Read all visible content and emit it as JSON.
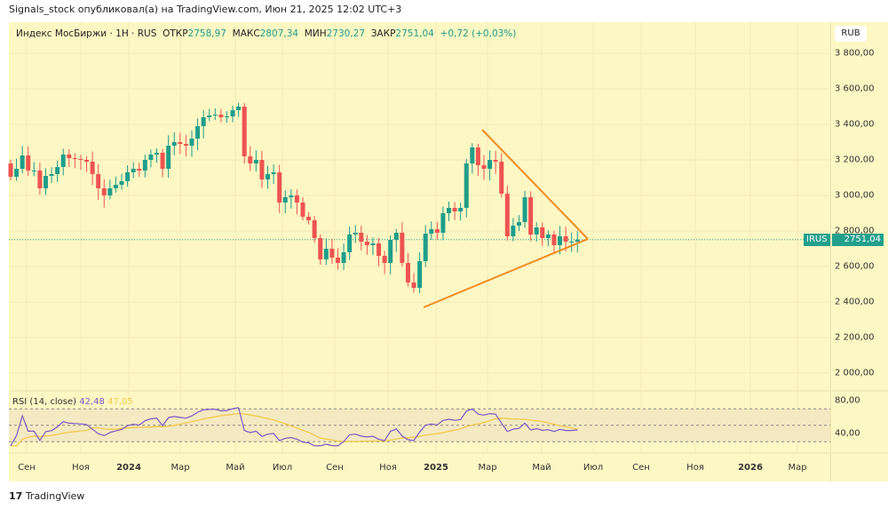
{
  "header": {
    "published": "Signals_stock опубликовал(а) на TradingView.com, Июн 21, 2025 12:02 UTC+3"
  },
  "legend": {
    "symbol": "Индекс МосБиржи · 1H · RUS",
    "open_label": "ОТКР",
    "open": "2758,97",
    "high_label": "МАКС",
    "high": "2807,34",
    "low_label": "МИН",
    "low": "2730,27",
    "close_label": "ЗАКР",
    "close": "2751,04",
    "change": "+0,72 (+0,03%)"
  },
  "currency": "RUB",
  "last_price_tag": {
    "ticker": "IRUS",
    "price": "2751,04"
  },
  "rsi": {
    "label": "RSI (14, close)",
    "value": "42,48",
    "ma_value": "47,05",
    "ticks": [
      "80,00",
      "40,00"
    ],
    "levels": [
      70,
      50,
      30
    ]
  },
  "footer": {
    "brand": "TradingView"
  },
  "colors": {
    "up": "#1e9e8a",
    "down": "#ef5350",
    "trend": "#f08a24",
    "rsi": "#7e57c2",
    "rsi_ma": "#f2c94c"
  },
  "chart_data": {
    "type": "candlestick",
    "title": "Индекс МосБиржи",
    "ylim": [
      1900,
      3900
    ],
    "yticks": [
      3800,
      3600,
      3400,
      3200,
      3000,
      2800,
      2600,
      2400,
      2200,
      2000
    ],
    "ytick_labels": [
      "3 800,00",
      "3 600,00",
      "3 400,00",
      "3 200,00",
      "3 000,00",
      "2 800,00",
      "2 600,00",
      "2 400,00",
      "2 200,00",
      "2 000,00"
    ],
    "xtick_labels": [
      {
        "t": "Сен",
        "b": false
      },
      {
        "t": "Ноя",
        "b": false
      },
      {
        "t": "2024",
        "b": true
      },
      {
        "t": "Мар",
        "b": false
      },
      {
        "t": "Май",
        "b": false
      },
      {
        "t": "Июл",
        "b": false
      },
      {
        "t": "Сен",
        "b": false
      },
      {
        "t": "Ноя",
        "b": false
      },
      {
        "t": "2025",
        "b": true
      },
      {
        "t": "Мар",
        "b": false
      },
      {
        "t": "Май",
        "b": false
      },
      {
        "t": "Июл",
        "b": false
      },
      {
        "t": "Сен",
        "b": false
      },
      {
        "t": "Ноя",
        "b": false
      },
      {
        "t": "2026",
        "b": true
      },
      {
        "t": "Мар",
        "b": false
      }
    ],
    "first_open": 3180,
    "closes": [
      3105,
      3150,
      3225,
      3140,
      3140,
      3040,
      3110,
      3120,
      3160,
      3230,
      3210,
      3205,
      3200,
      3190,
      3120,
      3040,
      3000,
      3040,
      3060,
      3080,
      3130,
      3150,
      3140,
      3200,
      3230,
      3240,
      3150,
      3280,
      3300,
      3290,
      3280,
      3320,
      3390,
      3440,
      3450,
      3455,
      3440,
      3445,
      3480,
      3500,
      3220,
      3180,
      3200,
      3090,
      3120,
      3130,
      2960,
      2990,
      3000,
      2960,
      2880,
      2860,
      2760,
      2640,
      2700,
      2650,
      2620,
      2680,
      2780,
      2790,
      2740,
      2720,
      2730,
      2660,
      2620,
      2750,
      2790,
      2620,
      2510,
      2480,
      2630,
      2785,
      2810,
      2790,
      2900,
      2930,
      2910,
      2930,
      3180,
      3270,
      3170,
      3150,
      3200,
      3190,
      3010,
      2770,
      2830,
      2850,
      2990,
      2780,
      2820,
      2760,
      2780,
      2720,
      2770,
      2740,
      2740,
      2751.04
    ],
    "trendlines": [
      {
        "name": "upper",
        "from": [
          3370,
          "2025-02"
        ],
        "to": [
          2750,
          "2025-06"
        ]
      },
      {
        "name": "lower",
        "from": [
          2370,
          "2024-12"
        ],
        "to": [
          2750,
          "2025-06"
        ]
      }
    ]
  }
}
